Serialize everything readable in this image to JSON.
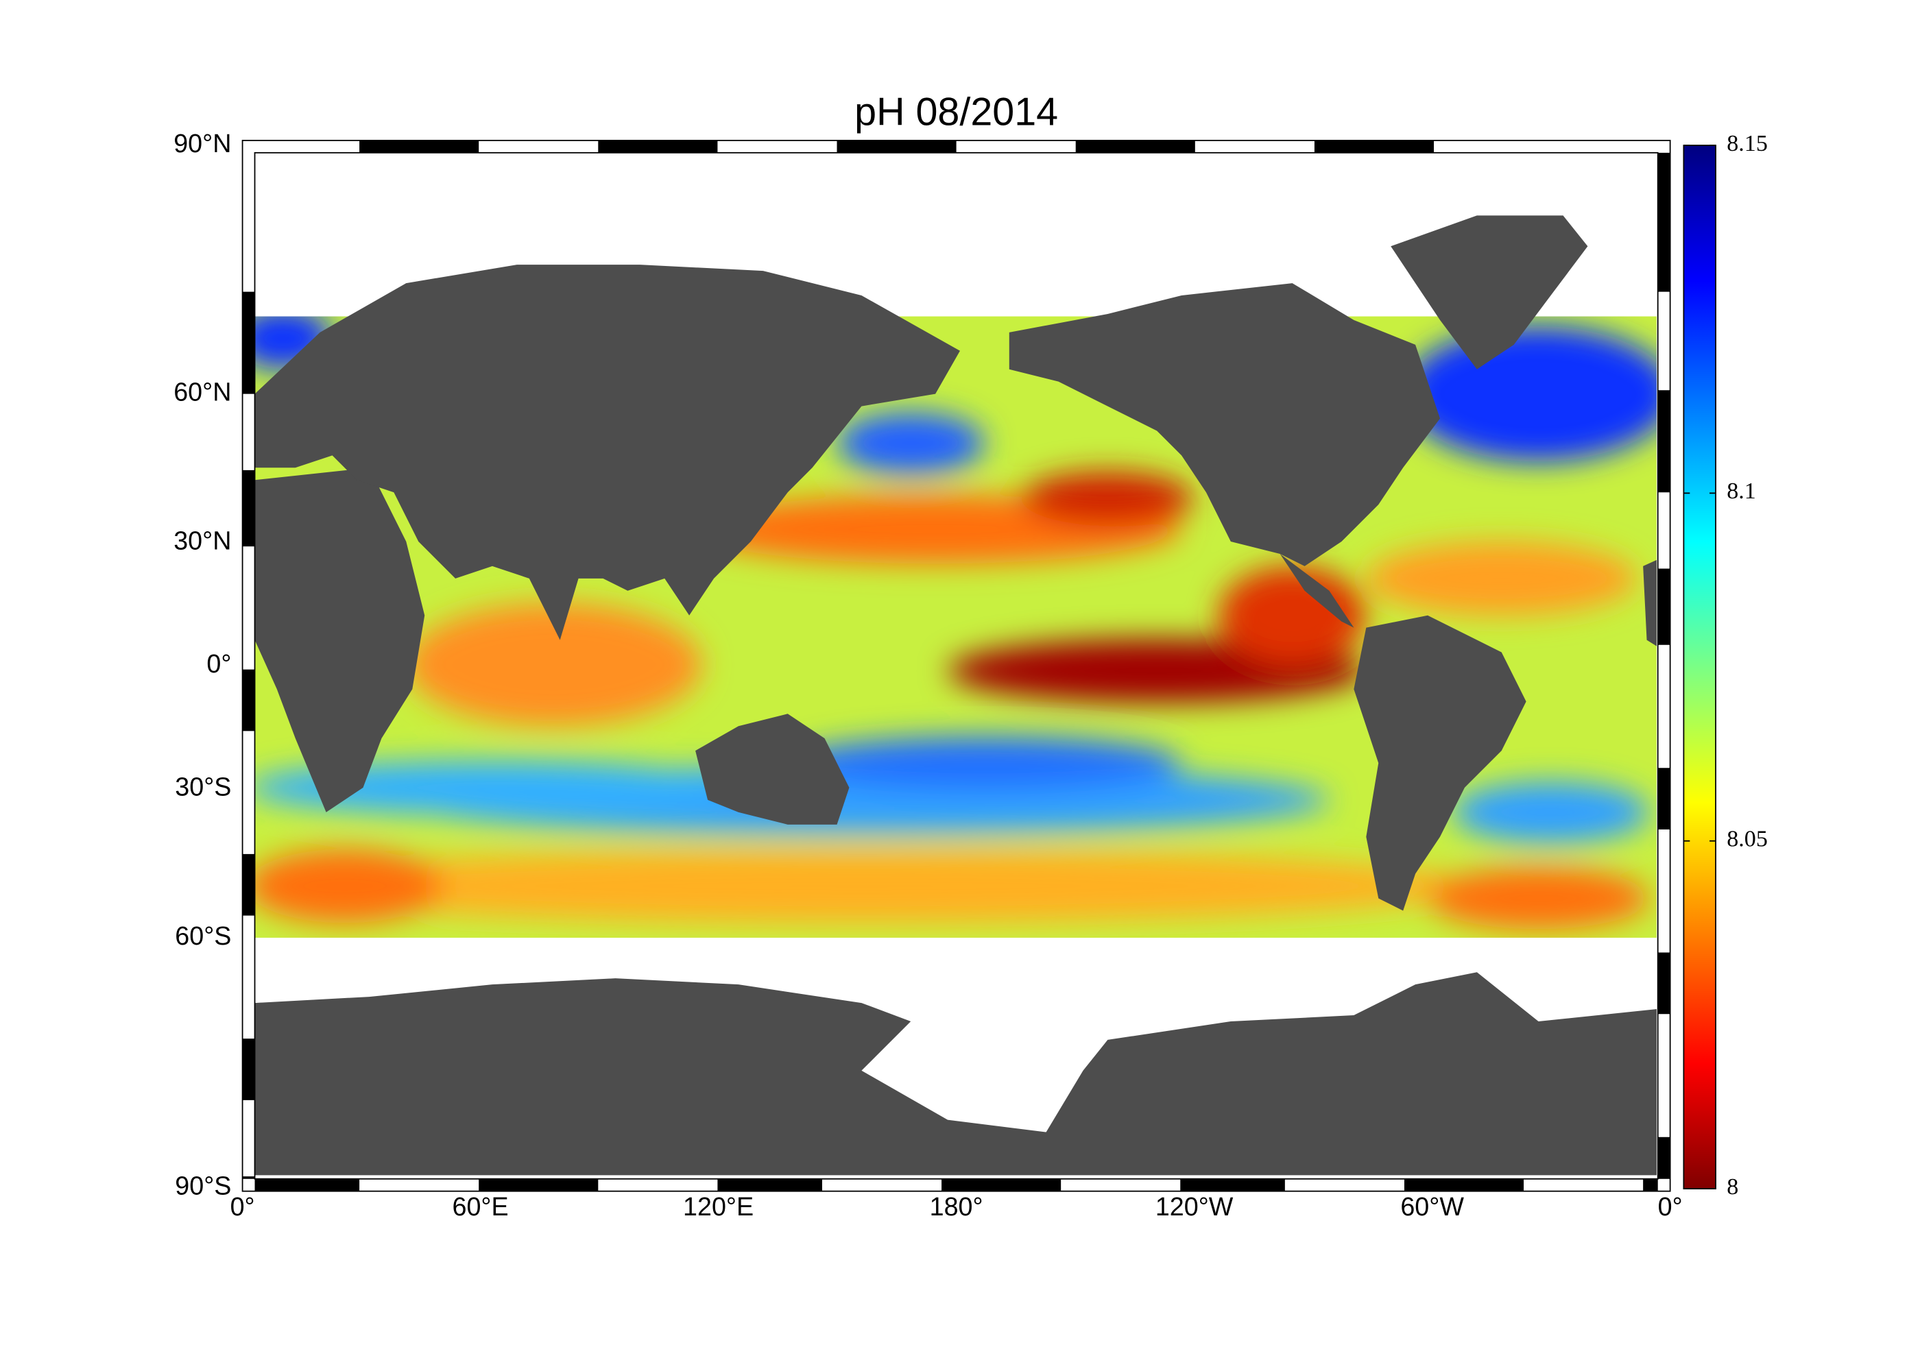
{
  "map": {
    "title": "pH  08/2014",
    "lat_labels": [
      "90°N",
      "60°N",
      "30°N",
      "0°",
      "30°S",
      "60°S",
      "90°S"
    ],
    "lon_labels": [
      "0°",
      "60°E",
      "120°E",
      "180°",
      "120°W",
      "60°W",
      "0°"
    ],
    "colorbar": {
      "colormap": "jet",
      "clim": [
        8,
        8.15
      ],
      "cticks": [
        8,
        8.05,
        8.1,
        8.15
      ]
    }
  }
}
